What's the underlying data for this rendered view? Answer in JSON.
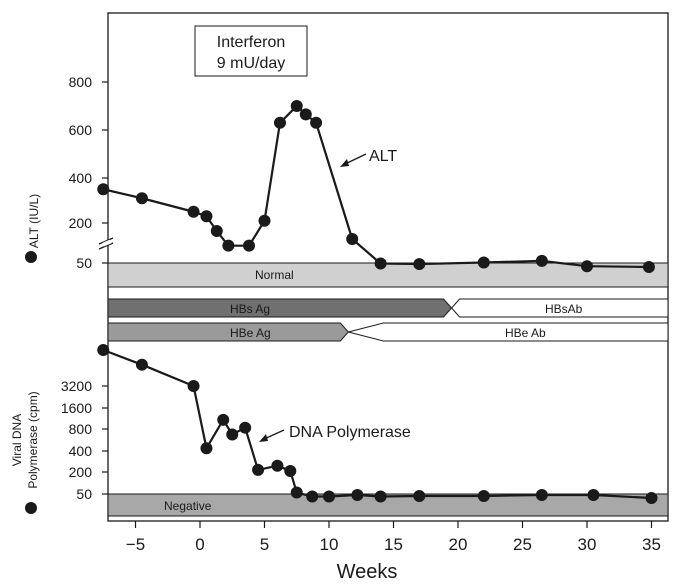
{
  "chart_data": [
    {
      "panel": "top",
      "type": "line",
      "ylabel": "ALT (IU/L)",
      "yticks": [
        {
          "value": 800,
          "label": "800"
        },
        {
          "value": 600,
          "label": "600"
        },
        {
          "value": 400,
          "label": "400"
        },
        {
          "value": 200,
          "label": "200"
        },
        {
          "value": 50,
          "label": "50"
        }
      ],
      "normal_band_label": "Normal",
      "annotation": "ALT",
      "treatment_box": {
        "line1": "Interferon",
        "line2": "9 mU/day"
      },
      "series": [
        {
          "name": "ALT",
          "x": [
            -7.5,
            -4.5,
            -0.5,
            0.5,
            1.3,
            2.2,
            3.8,
            5.0,
            6.2,
            7.5,
            8.2,
            9.0,
            11.8,
            14.0,
            17.0,
            22.0,
            26.5,
            30.0,
            34.8
          ],
          "y": [
            350,
            310,
            250,
            230,
            170,
            115,
            115,
            210,
            630,
            700,
            665,
            630,
            140,
            48,
            46,
            52,
            58,
            38,
            35
          ]
        }
      ]
    },
    {
      "panel": "serology",
      "type": "table",
      "bands": [
        {
          "left": "HBs Ag",
          "right": "HBsAb",
          "switch_week": 19.5
        },
        {
          "left": "HBe Ag",
          "right": "HBe Ab",
          "switch_week": 11.5
        }
      ]
    },
    {
      "panel": "bottom",
      "type": "line",
      "ylabel_line1": "Viral DNA",
      "ylabel_line2": "Polymerase (cpm)",
      "yticks": [
        {
          "value": 3200,
          "label": "3200"
        },
        {
          "value": 1600,
          "label": "1600"
        },
        {
          "value": 800,
          "label": "800"
        },
        {
          "value": 400,
          "label": "400"
        },
        {
          "value": 200,
          "label": "200"
        },
        {
          "value": 50,
          "label": "50"
        }
      ],
      "negative_band_label": "Negative",
      "annotation": "DNA Polymerase",
      "series": [
        {
          "name": "DNA Polymerase",
          "x": [
            -7.5,
            -4.5,
            -0.5,
            0.5,
            1.8,
            2.5,
            3.5,
            4.5,
            6.0,
            7.0,
            7.5,
            8.7,
            10.0,
            12.2,
            14.0,
            17.0,
            22.0,
            26.5,
            30.5,
            35.0
          ],
          "y": [
            13000,
            9000,
            3200,
            450,
            1150,
            700,
            850,
            220,
            260,
            210,
            60,
            45,
            45,
            48,
            45,
            46,
            46,
            48,
            48,
            42
          ]
        }
      ]
    }
  ],
  "x_axis": {
    "label": "Weeks",
    "ticks": [
      {
        "value": -5,
        "label": "−5"
      },
      {
        "value": 0,
        "label": "0"
      },
      {
        "value": 5,
        "label": "5"
      },
      {
        "value": 10,
        "label": "10"
      },
      {
        "value": 15,
        "label": "15"
      },
      {
        "value": 20,
        "label": "20"
      },
      {
        "value": 25,
        "label": "25"
      },
      {
        "value": 30,
        "label": "30"
      },
      {
        "value": 35,
        "label": "35"
      }
    ],
    "range": [
      -9,
      36.5
    ]
  },
  "colors": {
    "dark_band": "#707070",
    "mid_band": "#9a9a9a",
    "light_band": "#d0d0d0",
    "negative_band": "#a8a8a8",
    "ink": "#1a1a1a"
  }
}
